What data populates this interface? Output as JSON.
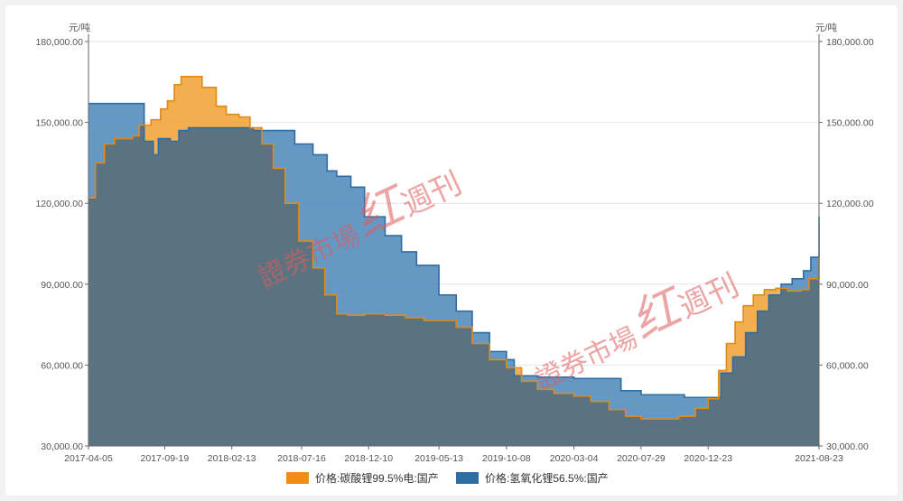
{
  "chart_data": {
    "type": "area",
    "y_unit_left": "元/吨",
    "y_unit_right": "元/吨",
    "ylim": [
      30000,
      180000
    ],
    "y_ticks": [
      "30,000.00",
      "60,000.00",
      "90,000.00",
      "120,000.00",
      "150,000.00",
      "180,000.00"
    ],
    "y_tick_values": [
      30000,
      60000,
      90000,
      120000,
      150000,
      180000
    ],
    "x_ticks": [
      "2017-04-05",
      "2017-09-19",
      "2018-02-13",
      "2018-07-16",
      "2018-12-10",
      "2019-05-13",
      "2019-10-08",
      "2020-03-04",
      "2020-07-29",
      "2020-12-23",
      "2021-08-23"
    ],
    "x_range": [
      "2017-04-05",
      "2021-08-23"
    ],
    "grid": true,
    "legend_position": "bottom",
    "series": [
      {
        "name": "价格:碳酸锂99.5%电:国产",
        "color": "#f0a030",
        "points": [
          [
            "2017-04-05",
            122000
          ],
          [
            "2017-04-20",
            135000
          ],
          [
            "2017-05-10",
            142000
          ],
          [
            "2017-06-01",
            144000
          ],
          [
            "2017-07-10",
            145000
          ],
          [
            "2017-07-25",
            149000
          ],
          [
            "2017-08-20",
            151000
          ],
          [
            "2017-09-10",
            155000
          ],
          [
            "2017-09-25",
            158000
          ],
          [
            "2017-10-10",
            164000
          ],
          [
            "2017-10-25",
            167000
          ],
          [
            "2017-11-20",
            167000
          ],
          [
            "2017-12-10",
            163000
          ],
          [
            "2018-01-10",
            156000
          ],
          [
            "2018-02-01",
            153000
          ],
          [
            "2018-03-01",
            152000
          ],
          [
            "2018-03-25",
            148000
          ],
          [
            "2018-04-20",
            142000
          ],
          [
            "2018-05-15",
            133000
          ],
          [
            "2018-06-10",
            120000
          ],
          [
            "2018-07-10",
            106000
          ],
          [
            "2018-08-10",
            96000
          ],
          [
            "2018-09-05",
            86000
          ],
          [
            "2018-10-01",
            79000
          ],
          [
            "2018-10-25",
            78500
          ],
          [
            "2018-12-01",
            79000
          ],
          [
            "2019-01-15",
            78500
          ],
          [
            "2019-03-01",
            77500
          ],
          [
            "2019-04-10",
            76500
          ],
          [
            "2019-05-13",
            76500
          ],
          [
            "2019-06-20",
            74000
          ],
          [
            "2019-07-25",
            68000
          ],
          [
            "2019-09-01",
            62000
          ],
          [
            "2019-10-08",
            59000
          ],
          [
            "2019-11-10",
            54000
          ],
          [
            "2019-12-15",
            51000
          ],
          [
            "2020-01-20",
            49500
          ],
          [
            "2020-03-04",
            48500
          ],
          [
            "2020-04-10",
            46500
          ],
          [
            "2020-05-20",
            43500
          ],
          [
            "2020-06-25",
            41000
          ],
          [
            "2020-07-29",
            40000
          ],
          [
            "2020-09-10",
            40000
          ],
          [
            "2020-10-20",
            41000
          ],
          [
            "2020-11-25",
            44000
          ],
          [
            "2020-12-23",
            47500
          ],
          [
            "2021-01-15",
            58000
          ],
          [
            "2021-02-01",
            68000
          ],
          [
            "2021-02-20",
            76000
          ],
          [
            "2021-03-10",
            82000
          ],
          [
            "2021-04-01",
            86000
          ],
          [
            "2021-04-25",
            88000
          ],
          [
            "2021-05-20",
            88500
          ],
          [
            "2021-06-15",
            87500
          ],
          [
            "2021-07-15",
            88000
          ],
          [
            "2021-08-01",
            92000
          ],
          [
            "2021-08-23",
            100000
          ]
        ]
      },
      {
        "name": "价格:氢氧化锂56.5%:国产",
        "color": "#4a86b8",
        "points": [
          [
            "2017-04-05",
            157000
          ],
          [
            "2017-06-01",
            157000
          ],
          [
            "2017-07-15",
            157000
          ],
          [
            "2017-08-05",
            143000
          ],
          [
            "2017-08-25",
            138000
          ],
          [
            "2017-09-05",
            144000
          ],
          [
            "2017-10-01",
            143000
          ],
          [
            "2017-10-20",
            147000
          ],
          [
            "2017-11-10",
            148000
          ],
          [
            "2018-01-10",
            148000
          ],
          [
            "2018-04-01",
            147000
          ],
          [
            "2018-06-10",
            147000
          ],
          [
            "2018-07-01",
            142000
          ],
          [
            "2018-08-10",
            138000
          ],
          [
            "2018-09-10",
            132000
          ],
          [
            "2018-10-01",
            130000
          ],
          [
            "2018-11-01",
            126000
          ],
          [
            "2018-12-01",
            115000
          ],
          [
            "2019-01-15",
            108000
          ],
          [
            "2019-02-20",
            102000
          ],
          [
            "2019-03-25",
            97000
          ],
          [
            "2019-05-13",
            86000
          ],
          [
            "2019-06-20",
            80000
          ],
          [
            "2019-07-25",
            72000
          ],
          [
            "2019-09-01",
            65000
          ],
          [
            "2019-10-08",
            62000
          ],
          [
            "2019-10-25",
            56000
          ],
          [
            "2019-12-15",
            55500
          ],
          [
            "2020-03-04",
            55000
          ],
          [
            "2020-05-15",
            55000
          ],
          [
            "2020-06-15",
            50500
          ],
          [
            "2020-07-29",
            49000
          ],
          [
            "2020-10-01",
            49000
          ],
          [
            "2020-11-01",
            48000
          ],
          [
            "2020-12-23",
            48000
          ],
          [
            "2021-01-20",
            57000
          ],
          [
            "2021-02-15",
            63000
          ],
          [
            "2021-03-15",
            72000
          ],
          [
            "2021-04-10",
            80000
          ],
          [
            "2021-05-05",
            86000
          ],
          [
            "2021-06-01",
            90000
          ],
          [
            "2021-06-25",
            92000
          ],
          [
            "2021-07-20",
            95000
          ],
          [
            "2021-08-05",
            100000
          ],
          [
            "2021-08-23",
            115000
          ]
        ]
      }
    ]
  },
  "watermark": {
    "brand": "證券市場",
    "brand_mark": "红",
    "suffix": "週刊"
  }
}
